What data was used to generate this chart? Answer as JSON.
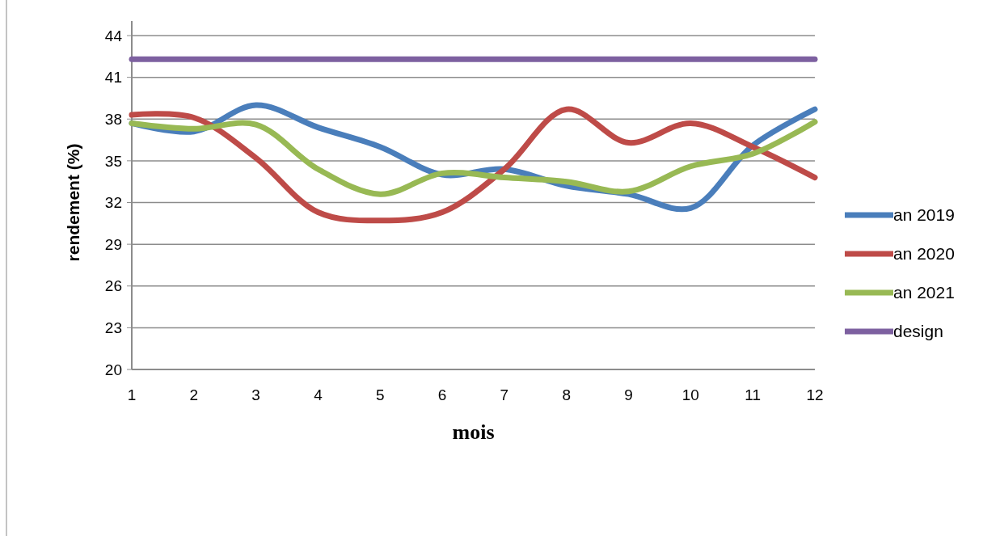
{
  "chart_data": {
    "type": "line",
    "xlabel": "mois",
    "ylabel": "rendement (%)",
    "x": [
      1,
      2,
      3,
      4,
      5,
      6,
      7,
      8,
      9,
      10,
      11,
      12
    ],
    "xlim": [
      1,
      12
    ],
    "xticks": [
      1,
      2,
      3,
      4,
      5,
      6,
      7,
      8,
      9,
      10,
      11,
      12
    ],
    "ylim": [
      20,
      44
    ],
    "yticks": [
      20,
      23,
      26,
      29,
      32,
      35,
      38,
      41,
      44
    ],
    "grid": "y",
    "legend": "right",
    "marker": "none",
    "line_style": "solid",
    "series": [
      {
        "name": "an 2019",
        "color": "#4a7ebb",
        "values": [
          37.7,
          37.1,
          39.0,
          37.4,
          36.0,
          34.0,
          34.4,
          33.2,
          32.6,
          31.6,
          36.1,
          38.7
        ]
      },
      {
        "name": "an 2020",
        "color": "#be4b48",
        "values": [
          38.3,
          38.1,
          35.2,
          31.3,
          30.7,
          31.3,
          34.4,
          38.7,
          36.3,
          37.7,
          36.0,
          33.8
        ]
      },
      {
        "name": "an 2021",
        "color": "#98b954",
        "values": [
          37.7,
          37.3,
          37.6,
          34.4,
          32.6,
          34.1,
          33.8,
          33.5,
          32.8,
          34.6,
          35.5,
          37.8
        ]
      },
      {
        "name": "design",
        "color": "#7d60a0",
        "values": [
          42.3,
          42.3,
          42.3,
          42.3,
          42.3,
          42.3,
          42.3,
          42.3,
          42.3,
          42.3,
          42.3,
          42.3
        ]
      }
    ]
  }
}
